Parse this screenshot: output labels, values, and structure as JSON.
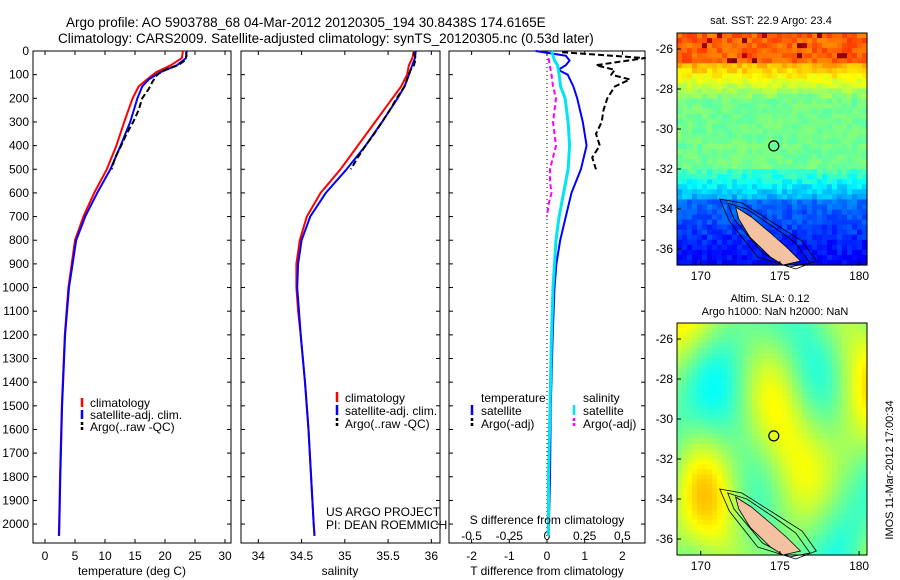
{
  "header": {
    "line1": "Argo profile: AO 5903788_68 04-Mar-2012 20120305_194 30.8438S 174.6165E",
    "line2": "Climatology: CARS2009. Satellite-adjusted climatology: synTS_20120305.nc (0.53d later)"
  },
  "colors": {
    "climatology": "#ff0000",
    "satellite": "#0000ff",
    "argo": "#000000",
    "sal_satellite": "#00e5ee",
    "sal_argo": "#ff00ff"
  },
  "chart_data": [
    {
      "type": "line",
      "id": "temperature",
      "xlabel": "temperature (deg C)",
      "ylabel": "",
      "xlim": [
        -2,
        31
      ],
      "ylim": [
        2080,
        0
      ],
      "xticks": [
        0,
        5,
        10,
        15,
        20,
        25,
        30
      ],
      "yticks": [
        0,
        100,
        200,
        300,
        400,
        500,
        600,
        700,
        800,
        900,
        1000,
        1100,
        1200,
        1300,
        1400,
        1500,
        1600,
        1700,
        1800,
        1900,
        2000
      ],
      "legend": [
        "climatology",
        "satellite-adj. clim.",
        "Argo(..raw -QC)"
      ],
      "series": [
        {
          "name": "climatology",
          "y": [
            0,
            30,
            60,
            90,
            120,
            150,
            200,
            300,
            400,
            500,
            600,
            700,
            800,
            1000,
            1200,
            1500,
            1800,
            2000,
            2050
          ],
          "x": [
            23,
            22.8,
            21,
            18.5,
            17,
            15.6,
            14.6,
            13.2,
            11.9,
            10.3,
            8.2,
            6.4,
            5,
            3.9,
            3.3,
            2.8,
            2.5,
            2.35,
            2.3
          ]
        },
        {
          "name": "satellite-adj. clim.",
          "y": [
            0,
            30,
            60,
            90,
            120,
            150,
            200,
            300,
            400,
            500,
            600,
            700,
            800,
            1000,
            1200,
            1500,
            1800,
            2000,
            2050
          ],
          "x": [
            23.6,
            23.5,
            22,
            19.2,
            17.3,
            16.2,
            15.4,
            14.2,
            12.6,
            10.9,
            8.7,
            6.7,
            5.2,
            4,
            3.35,
            2.85,
            2.55,
            2.4,
            2.35
          ]
        },
        {
          "name": "Argo(..raw -QC)",
          "y": [
            5,
            20,
            40,
            60,
            80,
            100,
            130,
            160,
            200,
            250,
            300,
            350,
            400,
            450,
            500
          ],
          "x": [
            23.5,
            23.6,
            23.3,
            22.2,
            20,
            18.7,
            17.9,
            17.3,
            16.2,
            15.6,
            14.7,
            13.6,
            12.7,
            11.7,
            11.1
          ]
        }
      ]
    },
    {
      "type": "line",
      "id": "salinity",
      "xlabel": "salinity",
      "ylabel": "",
      "xlim": [
        33.8,
        36.1
      ],
      "ylim": [
        2080,
        0
      ],
      "xticks": [
        34,
        34.5,
        35,
        35.5,
        36
      ],
      "legend": [
        "climatology",
        "satellite-adj. clim.",
        "Argo(..raw -QC)"
      ],
      "annotation": [
        "US ARGO PROJECT",
        "PI: DEAN ROEMMICH"
      ],
      "series": [
        {
          "name": "climatology",
          "y": [
            0,
            30,
            60,
            100,
            150,
            200,
            300,
            400,
            500,
            600,
            700,
            800,
            900,
            1000,
            1100,
            1200,
            1400,
            1600,
            1800,
            2000,
            2050
          ],
          "x": [
            35.8,
            35.78,
            35.74,
            35.72,
            35.65,
            35.55,
            35.35,
            35.15,
            34.95,
            34.72,
            34.56,
            34.48,
            34.44,
            34.44,
            34.46,
            34.49,
            34.54,
            34.58,
            34.61,
            34.64,
            34.65
          ]
        },
        {
          "name": "satellite-adj. clim.",
          "y": [
            0,
            30,
            60,
            100,
            150,
            200,
            300,
            400,
            500,
            600,
            700,
            800,
            900,
            1000,
            1100,
            1200,
            1400,
            1600,
            1800,
            2000,
            2050
          ],
          "x": [
            35.82,
            35.81,
            35.78,
            35.74,
            35.69,
            35.61,
            35.43,
            35.24,
            35.02,
            34.78,
            34.6,
            34.5,
            34.46,
            34.45,
            34.47,
            34.49,
            34.54,
            34.58,
            34.61,
            34.64,
            34.65
          ]
        },
        {
          "name": "Argo(..raw -QC)",
          "y": [
            5,
            30,
            60,
            80,
            100,
            150,
            200,
            250,
            300,
            350,
            400,
            450,
            500
          ],
          "x": [
            35.79,
            35.82,
            35.8,
            35.76,
            35.74,
            35.69,
            35.6,
            35.52,
            35.43,
            35.34,
            35.24,
            35.15,
            35.07
          ]
        }
      ]
    },
    {
      "type": "line",
      "id": "difference",
      "xlabel": "T difference from climatology",
      "xlabel_top": "S difference from climatology",
      "xlim": [
        -2.6,
        2.6
      ],
      "ylim": [
        2080,
        0
      ],
      "xticks": [
        -2,
        -1,
        0,
        1,
        2
      ],
      "xticks_top": [
        "-0.5",
        "-0.25",
        "0",
        "0.25",
        "0.5"
      ],
      "legend_headers": [
        "temperature",
        "salinity"
      ],
      "legend": [
        "satellite",
        "Argo(-adj)",
        "satellite",
        "Argo(-adj)"
      ],
      "series": [
        {
          "name": "temperature satellite",
          "y": [
            0,
            20,
            40,
            60,
            80,
            100,
            150,
            200,
            300,
            400,
            500,
            600,
            700,
            800,
            900,
            1000,
            1200,
            1500,
            1800,
            2000,
            2050
          ],
          "x": [
            -0.3,
            0.5,
            0.6,
            0.5,
            0.3,
            0.55,
            0.7,
            0.8,
            0.95,
            1.05,
            0.9,
            0.65,
            0.5,
            0.35,
            0.25,
            0.2,
            0.15,
            0.1,
            0.08,
            0.05,
            0.05
          ]
        },
        {
          "name": "temperature Argo(-adj)",
          "y": [
            5,
            30,
            60,
            80,
            100,
            120,
            150,
            200,
            250,
            300,
            350,
            400,
            450,
            500
          ],
          "x": [
            0.4,
            2.6,
            1.3,
            1.8,
            1.7,
            2.2,
            1.8,
            1.6,
            1.5,
            1.45,
            1.3,
            1.4,
            1.2,
            1.3
          ]
        },
        {
          "name": "salinity satellite",
          "y": [
            0,
            20,
            40,
            60,
            100,
            150,
            200,
            300,
            400,
            500,
            600,
            700,
            800,
            1000,
            1200,
            1500,
            1800,
            2000,
            2050
          ],
          "x": [
            0.03,
            0.04,
            0.05,
            0.07,
            0.08,
            0.09,
            0.12,
            0.14,
            0.15,
            0.14,
            0.11,
            0.08,
            0.06,
            0.04,
            0.03,
            0.02,
            0.01,
            0.01,
            0.01
          ]
        },
        {
          "name": "salinity Argo(-adj)",
          "y": [
            30,
            100,
            150,
            200,
            250,
            300,
            350,
            400,
            450,
            500,
            550,
            600,
            650,
            700
          ],
          "x": [
            0.01,
            0.03,
            0.04,
            0.06,
            0.05,
            0.04,
            0.05,
            0.06,
            0.04,
            0.02,
            0.02,
            0.03,
            0.01,
            0.0
          ]
        }
      ]
    },
    {
      "type": "heatmap",
      "id": "sst-map",
      "title": "sat. SST: 22.9 Argo: 23.4",
      "xlim": [
        168.5,
        180.5
      ],
      "ylim": [
        -36.8,
        -25.2
      ],
      "xticks": [
        170,
        175,
        180
      ],
      "yticks": [
        -26,
        -28,
        -30,
        -32,
        -34,
        -36
      ],
      "marker": {
        "lon": 174.6165,
        "lat": -30.8438
      }
    },
    {
      "type": "heatmap",
      "id": "sla-map",
      "title": "Altim. SLA: 0.12",
      "subtitle": "Argo h1000: NaN h2000: NaN",
      "xlim": [
        168.5,
        180.5
      ],
      "ylim": [
        -36.8,
        -25.2
      ],
      "xticks": [
        170,
        175,
        180
      ],
      "yticks": [
        -26,
        -28,
        -30,
        -32,
        -34,
        -36
      ],
      "marker": {
        "lon": 174.6165,
        "lat": -30.8438
      }
    }
  ],
  "side_label": "IMOS 11-Mar-2012 17:00:34"
}
